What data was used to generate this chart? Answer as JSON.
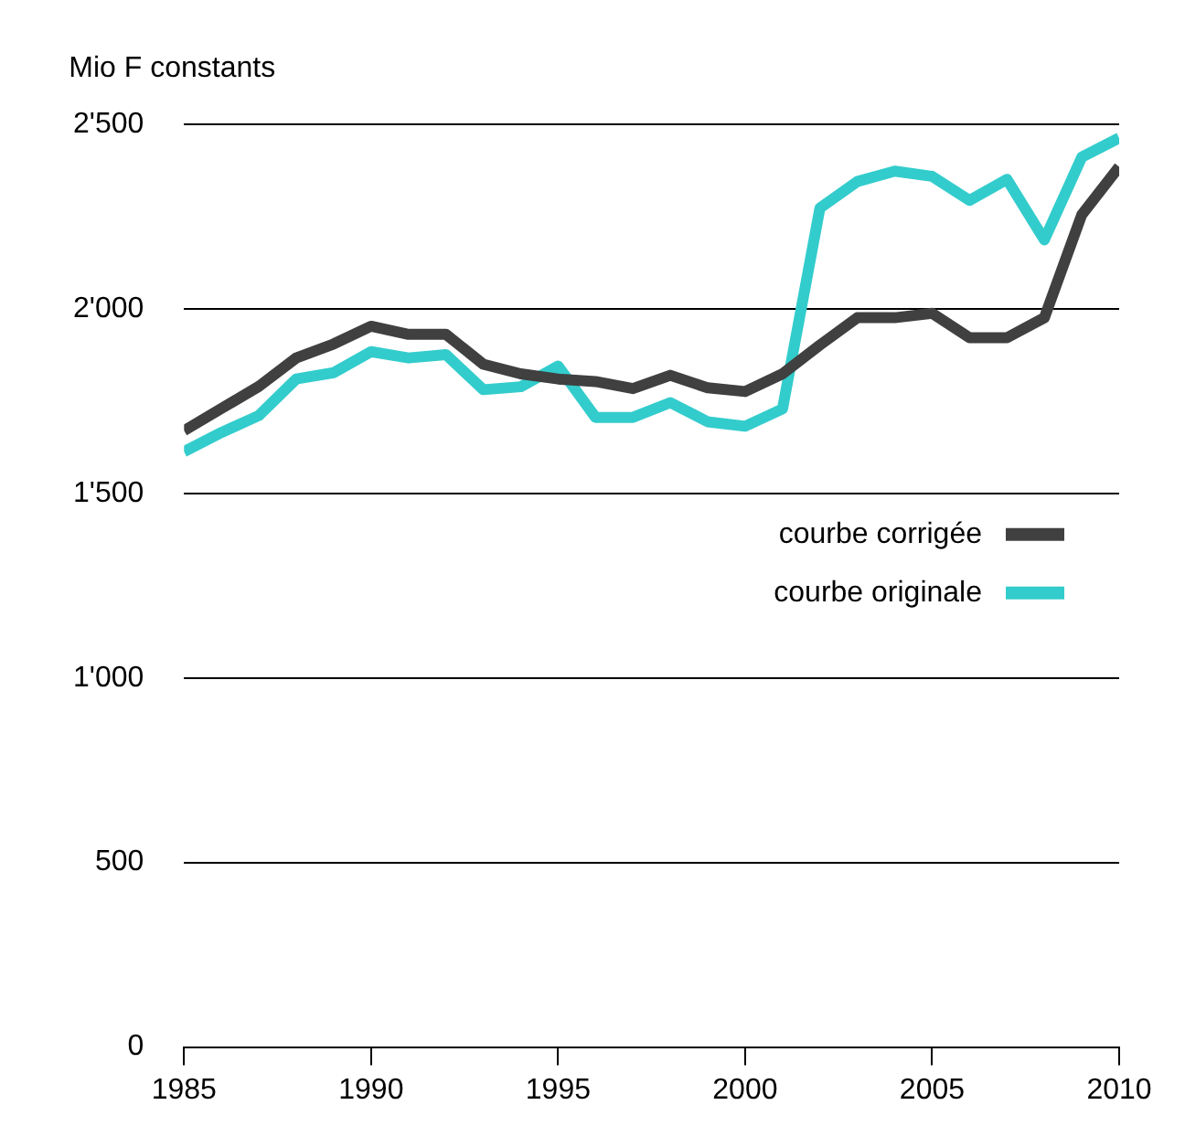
{
  "chart_data": {
    "type": "line",
    "ylabel": "Mio F constants",
    "x": [
      1985,
      1986,
      1987,
      1988,
      1989,
      1990,
      1991,
      1992,
      1993,
      1994,
      1995,
      1996,
      1997,
      1998,
      1999,
      2000,
      2001,
      2002,
      2003,
      2004,
      2005,
      2006,
      2007,
      2008,
      2009,
      2010
    ],
    "series": [
      {
        "name": "courbe corrigée",
        "color": "#404040",
        "values": [
          1670,
          1730,
          1790,
          1867,
          1905,
          1953,
          1931,
          1931,
          1850,
          1824,
          1810,
          1803,
          1784,
          1820,
          1786,
          1776,
          1824,
          1902,
          1976,
          1976,
          1988,
          1922,
          1922,
          1976,
          2255,
          2385
        ]
      },
      {
        "name": "courbe originale",
        "color": "#33cccc",
        "values": [
          1613,
          1665,
          1711,
          1810,
          1827,
          1884,
          1867,
          1876,
          1781,
          1789,
          1845,
          1706,
          1706,
          1746,
          1694,
          1682,
          1729,
          2273,
          2345,
          2373,
          2359,
          2294,
          2351,
          2187,
          2411,
          2463
        ]
      }
    ],
    "xlim": [
      1985,
      2010
    ],
    "xticks": [
      1985,
      1990,
      1995,
      2000,
      2005,
      2010
    ],
    "ylim": [
      0,
      2500
    ],
    "yticks": [
      0,
      500,
      {
        "value": 1000,
        "label": "1'000"
      },
      {
        "value": 1500,
        "label": "1'500"
      },
      {
        "value": 2000,
        "label": "2'000"
      },
      {
        "value": 2500,
        "label": "2'500"
      }
    ],
    "grid": "y",
    "legend": "right",
    "marker": "none",
    "line_style": "solid"
  }
}
